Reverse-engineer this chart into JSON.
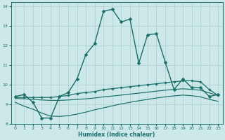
{
  "xlabel": "Humidex (Indice chaleur)",
  "ylabel": "",
  "bg_color": "#cce8e8",
  "grid_color": "#aacece",
  "line_color": "#1a6e6a",
  "xlim": [
    -0.5,
    23.5
  ],
  "ylim": [
    8,
    14.2
  ],
  "xticks": [
    0,
    1,
    2,
    3,
    4,
    5,
    6,
    7,
    8,
    9,
    10,
    11,
    12,
    13,
    14,
    15,
    16,
    17,
    18,
    19,
    20,
    21,
    22,
    23
  ],
  "yticks": [
    8,
    9,
    10,
    11,
    12,
    13,
    14
  ],
  "lines": [
    {
      "x": [
        0,
        1,
        2,
        3,
        4,
        5,
        6,
        7,
        8,
        9,
        10,
        11,
        12,
        13,
        14,
        15,
        16,
        17,
        18,
        19,
        20,
        21,
        22,
        23
      ],
      "y": [
        9.4,
        9.5,
        9.1,
        8.3,
        8.3,
        9.4,
        9.6,
        10.3,
        11.55,
        12.1,
        13.75,
        13.85,
        13.2,
        13.35,
        11.1,
        12.55,
        12.6,
        11.15,
        9.75,
        10.3,
        9.85,
        9.85,
        9.4,
        9.5
      ],
      "marker": "D",
      "markersize": 2.5,
      "linewidth": 1.0,
      "linestyle": "-"
    },
    {
      "x": [
        0,
        1,
        2,
        3,
        4,
        5,
        6,
        7,
        8,
        9,
        10,
        11,
        12,
        13,
        14,
        15,
        16,
        17,
        18,
        19,
        20,
        21,
        22,
        23
      ],
      "y": [
        9.35,
        9.35,
        9.35,
        9.35,
        9.35,
        9.4,
        9.45,
        9.55,
        9.6,
        9.65,
        9.75,
        9.8,
        9.85,
        9.9,
        9.95,
        10.0,
        10.05,
        10.1,
        10.15,
        10.2,
        10.2,
        10.15,
        9.75,
        9.45
      ],
      "marker": "D",
      "markersize": 1.8,
      "linewidth": 0.9,
      "linestyle": "-"
    },
    {
      "x": [
        0,
        1,
        2,
        3,
        4,
        5,
        6,
        7,
        8,
        9,
        10,
        11,
        12,
        13,
        14,
        15,
        16,
        17,
        18,
        19,
        20,
        21,
        22,
        23
      ],
      "y": [
        9.3,
        9.28,
        9.25,
        9.22,
        9.2,
        9.2,
        9.22,
        9.25,
        9.28,
        9.32,
        9.38,
        9.42,
        9.47,
        9.52,
        9.57,
        9.62,
        9.67,
        9.72,
        9.76,
        9.79,
        9.76,
        9.72,
        9.58,
        9.45
      ],
      "marker": null,
      "markersize": 0,
      "linewidth": 0.85,
      "linestyle": "-"
    },
    {
      "x": [
        0,
        1,
        2,
        3,
        4,
        5,
        6,
        7,
        8,
        9,
        10,
        11,
        12,
        13,
        14,
        15,
        16,
        17,
        18,
        19,
        20,
        21,
        22,
        23
      ],
      "y": [
        9.1,
        8.9,
        8.75,
        8.55,
        8.4,
        8.38,
        8.42,
        8.5,
        8.6,
        8.72,
        8.82,
        8.92,
        9.02,
        9.1,
        9.18,
        9.25,
        9.32,
        9.38,
        9.43,
        9.47,
        9.44,
        9.38,
        9.25,
        9.15
      ],
      "marker": null,
      "markersize": 0,
      "linewidth": 0.85,
      "linestyle": "-"
    }
  ]
}
